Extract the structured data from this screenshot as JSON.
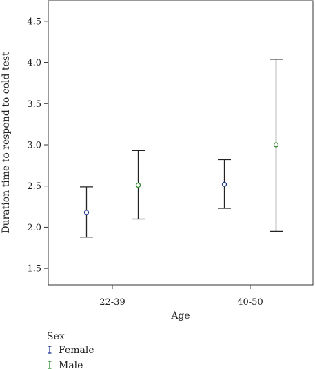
{
  "chart_data": {
    "type": "errorbar",
    "xlabel": "Age",
    "ylabel": "Duration time to respond to cold test",
    "categories": [
      "22-39",
      "40-50"
    ],
    "ylim": [
      1.3,
      4.75
    ],
    "yticks": [
      "1.5",
      "2.0",
      "2.5",
      "3.0",
      "3.5",
      "4.0",
      "4.5"
    ],
    "grid": false,
    "legend": {
      "title": "Sex",
      "placement": "bottom-left",
      "entries": [
        "Female",
        "Male"
      ]
    },
    "series": [
      {
        "name": "Female",
        "color": "#1f3a93",
        "points": [
          {
            "category": "22-39",
            "mean": 2.18,
            "lower": 1.88,
            "upper": 2.49
          },
          {
            "category": "40-50",
            "mean": 2.52,
            "lower": 2.23,
            "upper": 2.82
          }
        ]
      },
      {
        "name": "Male",
        "color": "#2e8b2e",
        "points": [
          {
            "category": "22-39",
            "mean": 2.51,
            "lower": 2.1,
            "upper": 2.93
          },
          {
            "category": "40-50",
            "mean": 3.0,
            "lower": 1.95,
            "upper": 4.04
          }
        ]
      }
    ]
  }
}
